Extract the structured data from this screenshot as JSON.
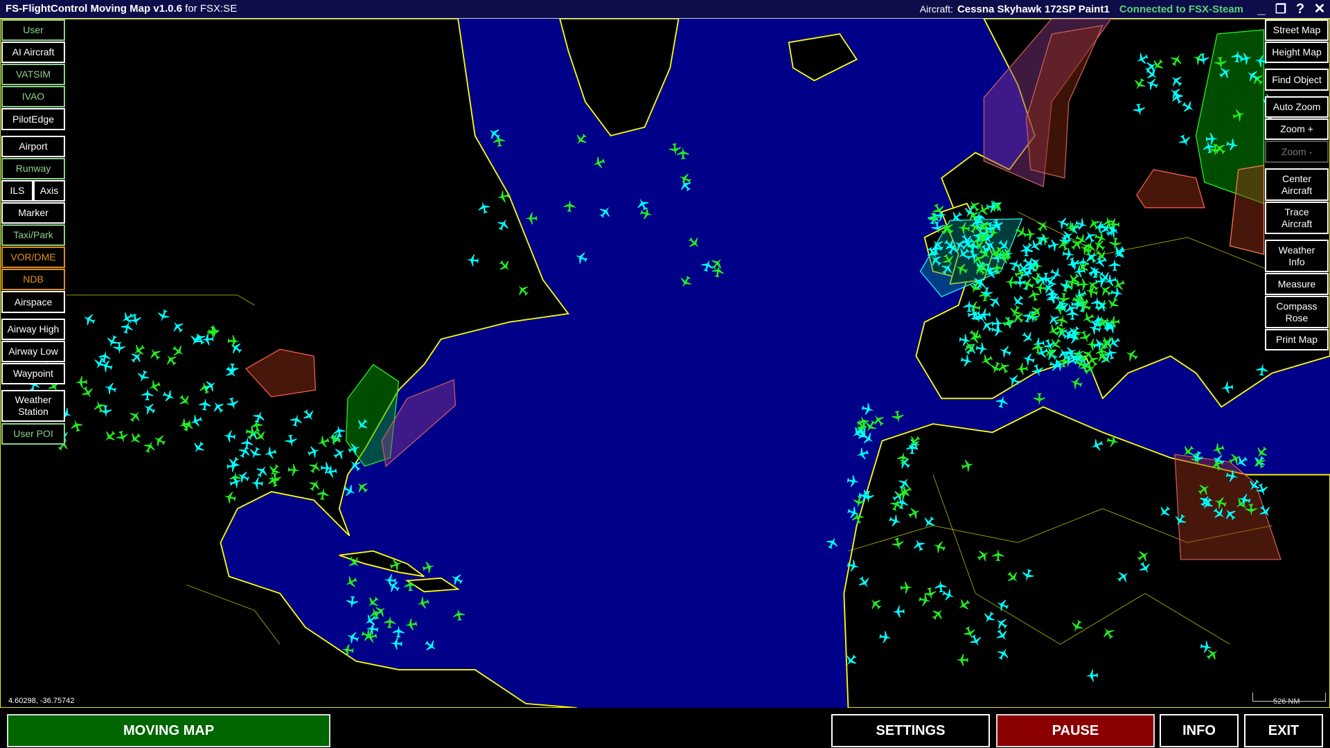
{
  "titlebar": {
    "app_name": "FS-FlightControl Moving Map v1.0.6",
    "app_suffix": "for FSX:SE",
    "aircraft_label": "Aircraft:",
    "aircraft_value": "Cessna Skyhawk 172SP Paint1",
    "connection_status": "Connected to FSX-Steam",
    "minimize": "_",
    "restore": "❐",
    "help": "?",
    "close": "✕"
  },
  "left_panel": {
    "user": "User",
    "ai_aircraft": "AI Aircraft",
    "vatsim": "VATSIM",
    "ivao": "IVAO",
    "pilotedge": "PilotEdge",
    "airport": "Airport",
    "runway": "Runway",
    "ils": "ILS",
    "axis": "Axis",
    "marker": "Marker",
    "taxi_park": "Taxi/Park",
    "vor_dme": "VOR/DME",
    "ndb": "NDB",
    "airspace": "Airspace",
    "airway_high": "Airway High",
    "airway_low": "Airway Low",
    "waypoint": "Waypoint",
    "weather_station": "Weather Station",
    "user_poi": "User POI"
  },
  "right_panel": {
    "street_map": "Street Map",
    "height_map": "Height Map",
    "find_object": "Find Object",
    "auto_zoom": "Auto Zoom",
    "zoom_in": "Zoom +",
    "zoom_out": "Zoom -",
    "center_aircraft": "Center Aircraft",
    "trace_aircraft": "Trace Aircraft",
    "weather_info": "Weather Info",
    "measure": "Measure",
    "compass_rose": "Compass Rose",
    "print_map": "Print Map"
  },
  "map": {
    "cursor_coordinates": "4.60298, -36.75742",
    "scale_label": "526 NM",
    "colors": {
      "ocean": "#000088",
      "land": "#000000",
      "coastline": "#ffff00",
      "ai_aircraft": "#00ffff",
      "online_aircraft": "#22ee22"
    }
  },
  "bottom_bar": {
    "moving_map": "MOVING MAP",
    "settings": "SETTINGS",
    "pause": "PAUSE",
    "info": "INFO",
    "exit": "EXIT"
  }
}
